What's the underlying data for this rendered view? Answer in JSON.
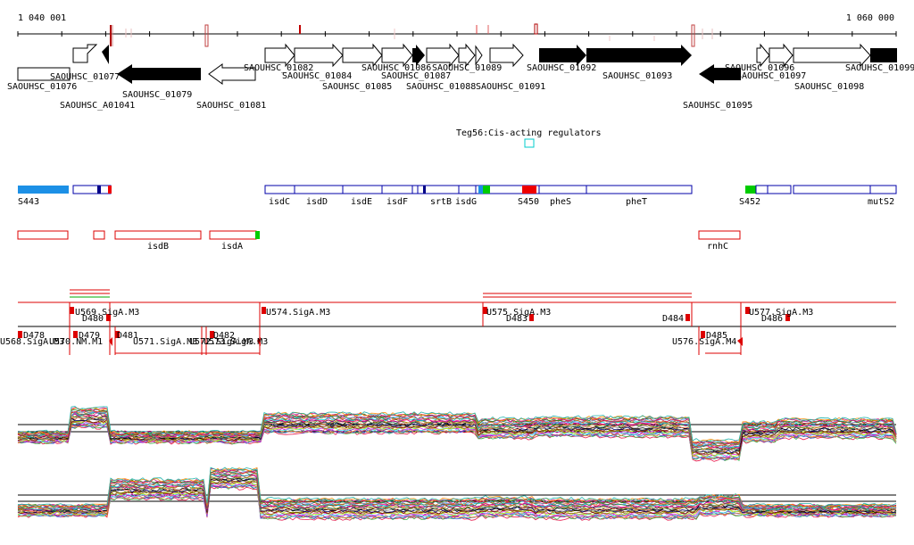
{
  "coordinates": {
    "start_label": "1 040 001",
    "end_label": "1 060 000"
  },
  "genes": {
    "top": [
      "SAOUHSC_01077",
      "SAOUHSC_01082",
      "SAOUHSC_01086",
      "SAOUHSC_01089",
      "SAOUHSC_01092",
      "SAOUHSC_01096",
      "SAOUHSC_01099"
    ],
    "mid": [
      "SAOUHSC_01079",
      "SAOUHSC_01084",
      "SAOUHSC_01087",
      "SAOUHSC_01093",
      "SAOUHSC_01097"
    ],
    "low": [
      "SAOUHSC_01076",
      "SAOUHSC_01085",
      "SAOUHSC_01088",
      "SAOUHSC_01091",
      "SAOUHSC_01098"
    ],
    "bottom": [
      "SAOUHSC_A01041",
      "SAOUHSC_01081",
      "SAOUHSC_01095"
    ]
  },
  "regulator": {
    "label": "Teg56:Cis-acting regulators"
  },
  "features": {
    "labels": [
      "S443",
      "isdC",
      "isdD",
      "isdE",
      "isdF",
      "srtB",
      "isdG",
      "S450",
      "pheS",
      "pheT",
      "S452",
      "mutS2"
    ],
    "lower_labels": [
      "isdB",
      "isdA",
      "rnhC"
    ]
  },
  "segments": {
    "labels": [
      "U568.SigA.M3",
      "D478",
      "U570.NM.M1",
      "U569.SigA.M3",
      "D480",
      "D479",
      "U571.SigA.M3",
      "U572.SigA.M3",
      "D481",
      "D482",
      "U573.SigA.M3",
      "U574.SigA.M3",
      "U575.SigA.M3",
      "D483",
      "D484",
      "U576.SigA.M4",
      "D485",
      "U577.SigA.M3",
      "D486"
    ]
  },
  "colors": {
    "gene_filled": "#000000",
    "feature_outline": "#0000aa",
    "feature_blue": "#1c90e6",
    "feature_green": "#00cc00",
    "feature_red": "#ee0000",
    "segment_red": "#dd0000",
    "regulator_cyan": "#00cccc"
  }
}
